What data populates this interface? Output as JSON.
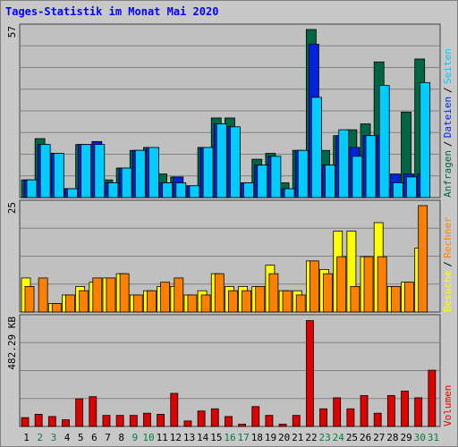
{
  "title": "Tages-Statistik im Monat Mai 2020",
  "colors": {
    "hits": "#006644",
    "files": "#0022dd",
    "pages": "#00ccff",
    "visits": "#ffff00",
    "sites": "#ff8000",
    "volume": "#e00000",
    "weekend": "#008040",
    "weekday": "#000000"
  },
  "chart_data": [
    {
      "type": "bar",
      "name": "requests-chart",
      "ymax_label": "57",
      "ymax": 57,
      "right_labels": [
        "Anfragen",
        "Dateien",
        "Seiten"
      ],
      "series": [
        {
          "name": "Anfragen",
          "values": [
            6,
            20,
            15,
            3,
            18,
            18,
            6,
            10,
            16,
            17,
            8,
            7,
            4,
            17,
            27,
            27,
            5,
            13,
            15,
            5,
            16,
            57,
            16,
            21,
            23,
            25,
            46,
            3,
            29,
            47,
            0
          ]
        },
        {
          "name": "Dateien",
          "values": [
            6,
            18,
            15,
            3,
            18,
            19,
            5,
            10,
            16,
            17,
            5,
            7,
            4,
            17,
            25,
            24,
            5,
            11,
            14,
            3,
            16,
            52,
            11,
            21,
            17,
            21,
            21,
            8,
            8,
            8,
            0
          ]
        },
        {
          "name": "Seiten",
          "values": [
            6,
            18,
            15,
            3,
            18,
            18,
            5,
            10,
            16,
            17,
            5,
            5,
            4,
            17,
            25,
            24,
            5,
            11,
            14,
            3,
            16,
            34,
            11,
            23,
            14,
            21,
            38,
            5,
            7,
            39,
            0
          ]
        }
      ]
    },
    {
      "type": "bar",
      "name": "visits-chart",
      "ymax_label": "25",
      "ymax": 25,
      "right_labels": [
        "Besuche",
        "Rechner"
      ],
      "series": [
        {
          "name": "Besuche",
          "values": [
            8,
            0,
            2,
            4,
            6,
            7,
            8,
            9,
            4,
            5,
            6,
            6,
            4,
            5,
            9,
            6,
            6,
            6,
            11,
            5,
            5,
            12,
            10,
            19,
            19,
            13,
            21,
            6,
            7,
            15,
            0
          ]
        },
        {
          "name": "Rechner",
          "values": [
            6,
            8,
            2,
            4,
            5,
            8,
            8,
            9,
            4,
            5,
            7,
            8,
            4,
            4,
            9,
            5,
            5,
            6,
            9,
            5,
            4,
            12,
            9,
            13,
            6,
            13,
            13,
            6,
            7,
            25,
            0
          ]
        }
      ]
    },
    {
      "type": "bar",
      "name": "volume-chart",
      "ymax_label": "482.29 KB",
      "ymax": 482.29,
      "right_labels": [
        "Volumen"
      ],
      "series": [
        {
          "name": "Volumen",
          "values": [
            40,
            55,
            45,
            30,
            125,
            135,
            50,
            50,
            50,
            60,
            55,
            150,
            25,
            70,
            80,
            45,
            10,
            90,
            50,
            10,
            50,
            480,
            80,
            130,
            80,
            140,
            60,
            140,
            160,
            130,
            255
          ]
        }
      ]
    }
  ],
  "days": [
    "1",
    "2",
    "3",
    "4",
    "5",
    "6",
    "7",
    "8",
    "9",
    "10",
    "11",
    "12",
    "13",
    "14",
    "15",
    "16",
    "17",
    "18",
    "19",
    "20",
    "21",
    "22",
    "23",
    "24",
    "25",
    "26",
    "27",
    "28",
    "29",
    "30",
    "31"
  ],
  "weekend_days": [
    "2",
    "3",
    "9",
    "10",
    "16",
    "17",
    "23",
    "24",
    "30",
    "31"
  ]
}
